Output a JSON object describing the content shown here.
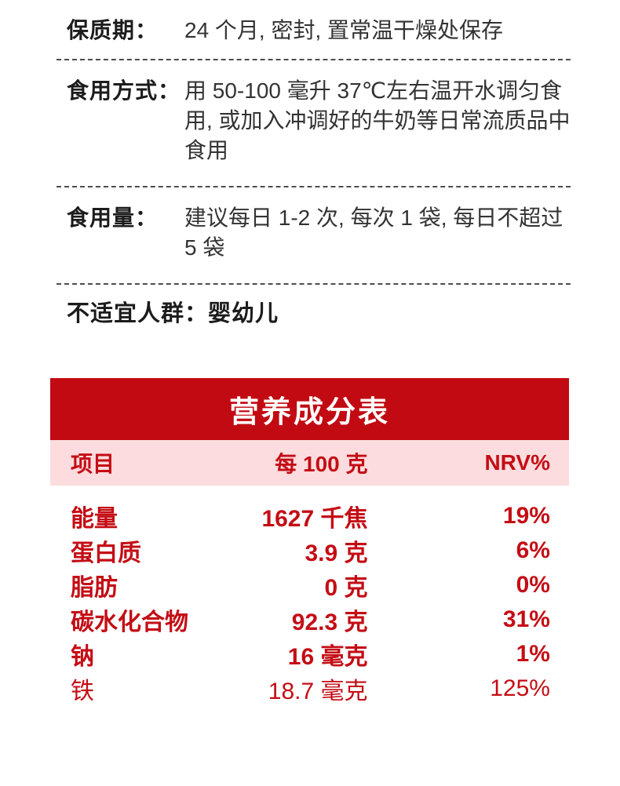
{
  "colors": {
    "red_band": "#C20A12",
    "pink": "#FCDCDE",
    "red_text": "#C40D15",
    "label_text": "#1C1C1C",
    "value_text": "#333333"
  },
  "specs": [
    {
      "label": "保质期：",
      "value": "24 个月, 密封, 置常温干燥处保存"
    },
    {
      "label": "食用方式：",
      "value": "用 50-100 毫升 37℃左右温开水调匀食用, 或加入冲调好的牛奶等日常流质品中食用"
    },
    {
      "label": "食用量：",
      "value": "建议每日 1-2 次, 每次 1 袋, 每日不超过 5 袋"
    }
  ],
  "unsuitable": {
    "label": "不适宜人群：",
    "value": "婴幼儿"
  },
  "nutrition": {
    "title": "营养成分表",
    "columns": {
      "item": "项目",
      "per": "每 100 克",
      "nrv": "NRV%"
    },
    "rows": [
      {
        "name": "能量",
        "per": "1627 千焦",
        "nrv": "19%",
        "bold": true
      },
      {
        "name": "蛋白质",
        "per": "3.9 克",
        "nrv": "6%",
        "bold": true
      },
      {
        "name": "脂肪",
        "per": "0 克",
        "nrv": "0%",
        "bold": true
      },
      {
        "name": "碳水化合物",
        "per": "92.3 克",
        "nrv": "31%",
        "bold": true
      },
      {
        "name": "钠",
        "per": "16 毫克",
        "nrv": "1%",
        "bold": true
      },
      {
        "name": "铁",
        "per": "18.7 毫克",
        "nrv": "125%",
        "bold": false
      }
    ]
  }
}
